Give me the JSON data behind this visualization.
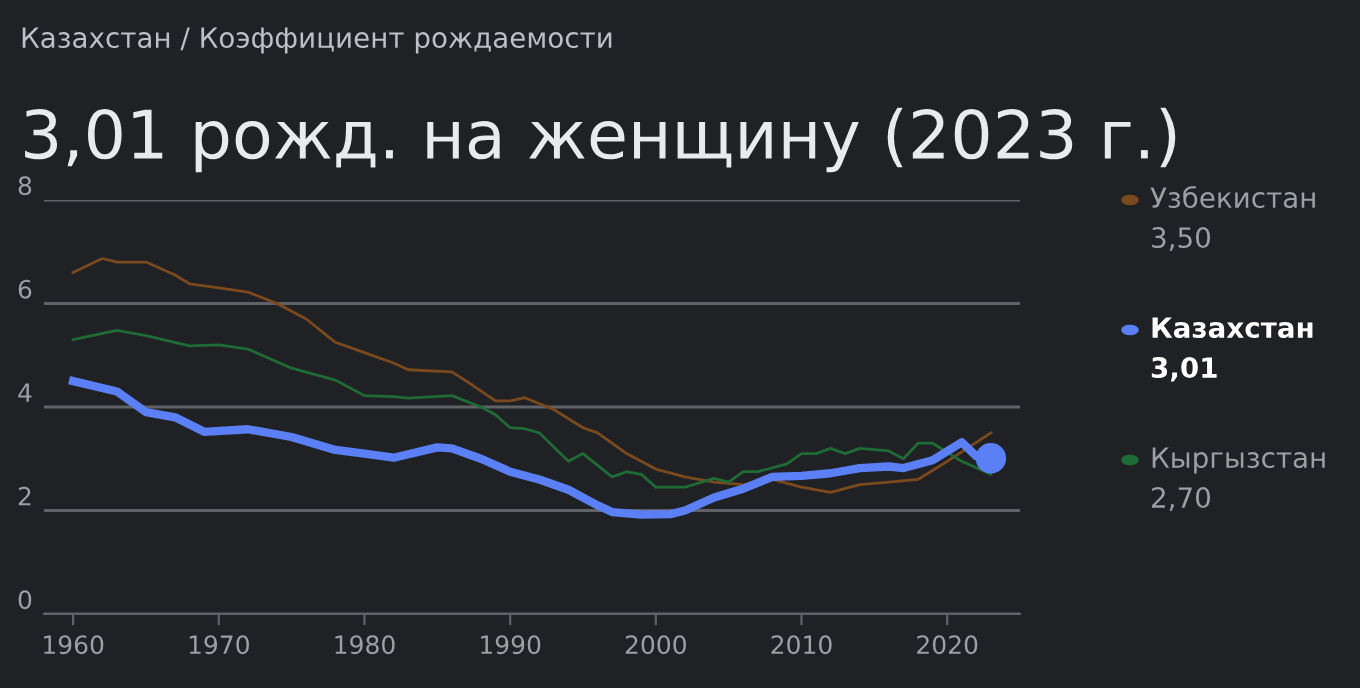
{
  "chart_data": {
    "type": "line",
    "subtitle": "Казахстан / Коэффициент рождаемости",
    "title": "3,01 рожд. на женщину (2023 г.)",
    "xlim": [
      1958,
      2025
    ],
    "xticks": [
      1960,
      1970,
      1980,
      1990,
      2000,
      2010,
      2020
    ],
    "ylim": [
      0,
      8
    ],
    "yticks": [
      0,
      2,
      4,
      6,
      8
    ],
    "grid": "y",
    "legend": "right",
    "annotations": [
      "3,50",
      "3,01",
      "2,70"
    ],
    "series": [
      {
        "name": "Узбекистан",
        "color": "#7a4a1e",
        "x": [
          1960,
          1962,
          1963,
          1965,
          1967,
          1968,
          1970,
          1972,
          1974,
          1976,
          1978,
          1980,
          1982,
          1983,
          1986,
          1987,
          1989,
          1990,
          1991,
          1993,
          1995,
          1996,
          1998,
          2000,
          2002,
          2004,
          2006,
          2008,
          2010,
          2012,
          2014,
          2016,
          2018,
          2020,
          2023
        ],
        "values": [
          6.6,
          6.87,
          6.8,
          6.8,
          6.55,
          6.38,
          6.3,
          6.22,
          6.0,
          5.7,
          5.25,
          5.05,
          4.85,
          4.72,
          4.68,
          4.5,
          4.12,
          4.12,
          4.18,
          3.95,
          3.6,
          3.5,
          3.1,
          2.8,
          2.65,
          2.55,
          2.5,
          2.6,
          2.45,
          2.35,
          2.5,
          2.55,
          2.6,
          2.95,
          3.5
        ]
      },
      {
        "name": "Казахстан",
        "color": "#5b7ff5",
        "x": [
          1960,
          1963,
          1965,
          1967,
          1969,
          1972,
          1975,
          1978,
          1980,
          1982,
          1985,
          1986,
          1988,
          1990,
          1992,
          1994,
          1996,
          1997,
          1999,
          2001,
          2002,
          2004,
          2006,
          2008,
          2010,
          2012,
          2014,
          2016,
          2017,
          2019,
          2021,
          2022,
          2023
        ],
        "values": [
          4.5,
          4.3,
          3.9,
          3.8,
          3.52,
          3.57,
          3.42,
          3.17,
          3.1,
          3.02,
          3.22,
          3.2,
          3.0,
          2.75,
          2.6,
          2.4,
          2.1,
          1.97,
          1.92,
          1.93,
          2.0,
          2.25,
          2.42,
          2.65,
          2.67,
          2.72,
          2.82,
          2.85,
          2.82,
          2.97,
          3.32,
          3.05,
          3.01
        ]
      },
      {
        "name": "Кыргызстан",
        "color": "#1e6b35",
        "x": [
          1960,
          1963,
          1965,
          1968,
          1970,
          1972,
          1975,
          1978,
          1980,
          1982,
          1983,
          1986,
          1988,
          1989,
          1990,
          1991,
          1992,
          1994,
          1995,
          1997,
          1998,
          1999,
          2000,
          2002,
          2004,
          2005,
          2006,
          2007,
          2009,
          2010,
          2011,
          2012,
          2013,
          2014,
          2016,
          2017,
          2018,
          2019,
          2021,
          2023
        ],
        "values": [
          5.3,
          5.48,
          5.38,
          5.18,
          5.2,
          5.12,
          4.75,
          4.52,
          4.22,
          4.2,
          4.17,
          4.22,
          4.0,
          3.85,
          3.6,
          3.58,
          3.5,
          2.95,
          3.1,
          2.65,
          2.75,
          2.7,
          2.45,
          2.45,
          2.62,
          2.55,
          2.75,
          2.75,
          2.9,
          3.1,
          3.1,
          3.2,
          3.1,
          3.2,
          3.15,
          3.0,
          3.3,
          3.3,
          2.95,
          2.7
        ]
      },
      {
        "type": "scatter",
        "color": "#5b7ff5",
        "marker": "circle",
        "x": [
          2023
        ],
        "values": [
          3.01
        ]
      }
    ]
  }
}
